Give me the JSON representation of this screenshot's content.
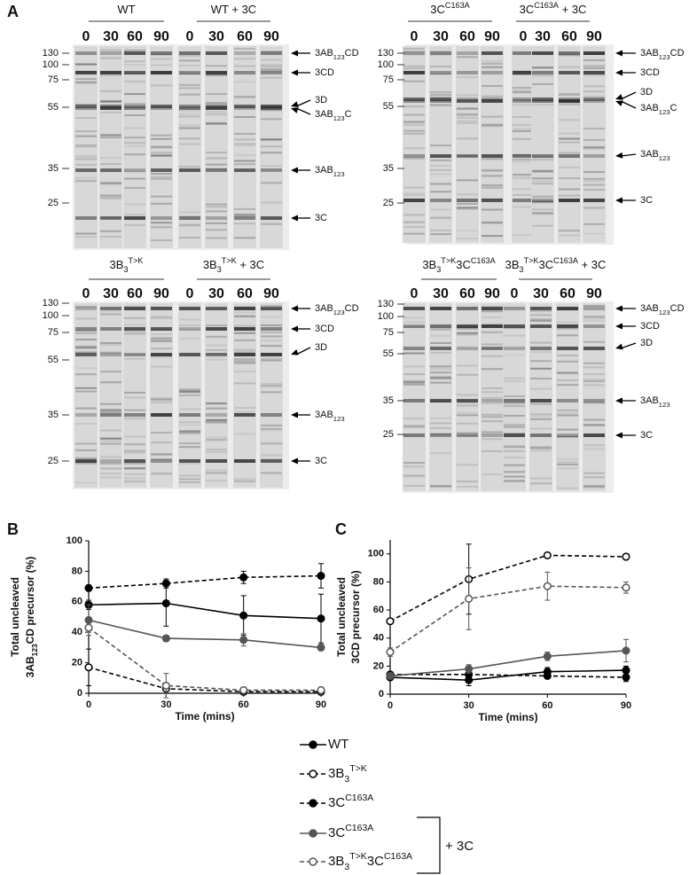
{
  "panels": [
    "A",
    "B",
    "C"
  ],
  "gels": [
    {
      "groups": [
        {
          "label": [
            "WT"
          ],
          "lanes": [
            0,
            30,
            60,
            90
          ]
        },
        {
          "label": [
            "WT + 3C"
          ],
          "lanes": [
            0,
            30,
            60,
            90
          ]
        }
      ],
      "markers": [
        130,
        100,
        75,
        55,
        35,
        25
      ],
      "bands": [
        [
          "3AB",
          {
            "sub": "123"
          },
          "CD"
        ],
        [
          "3CD"
        ],
        [
          "3D"
        ],
        [
          "3AB",
          {
            "sub": "123"
          },
          "C"
        ],
        [
          "3AB",
          {
            "sub": "123"
          }
        ],
        [
          "3C"
        ]
      ]
    },
    {
      "groups": [
        {
          "label": [
            "3C",
            {
              "sup": "C163A"
            }
          ],
          "lanes": [
            0,
            30,
            60,
            90
          ]
        },
        {
          "label": [
            "3C",
            {
              "sup": "C163A"
            },
            " + 3C"
          ],
          "lanes": [
            0,
            30,
            60,
            90
          ]
        }
      ],
      "markers": [
        130,
        100,
        75,
        55,
        35,
        25
      ],
      "bands": [
        [
          "3AB",
          {
            "sub": "123"
          },
          "CD"
        ],
        [
          "3CD"
        ],
        [
          "3D"
        ],
        [
          "3AB",
          {
            "sub": "123"
          },
          "C"
        ],
        [
          "3AB",
          {
            "sub": "123"
          }
        ],
        [
          "3C"
        ]
      ]
    },
    {
      "groups": [
        {
          "label": [
            "3B",
            {
              "sub": "3"
            },
            {
              "sup": "T>K"
            }
          ],
          "lanes": [
            0,
            30,
            60,
            90
          ]
        },
        {
          "label": [
            "3B",
            {
              "sub": "3"
            },
            {
              "sup": "T>K"
            },
            " + 3C"
          ],
          "lanes": [
            0,
            30,
            60,
            90
          ]
        }
      ],
      "markers": [
        130,
        100,
        75,
        55,
        35,
        25
      ],
      "bands": [
        [
          "3AB",
          {
            "sub": "123"
          },
          "CD"
        ],
        [
          "3CD"
        ],
        [
          "3D"
        ],
        [
          "3AB",
          {
            "sub": "123"
          }
        ],
        [
          "3C"
        ]
      ]
    },
    {
      "groups": [
        {
          "label": [
            "3B",
            {
              "sub": "3"
            },
            {
              "sup": "T>K"
            },
            "3C",
            {
              "sup": "C163A"
            }
          ],
          "lanes": [
            0,
            30,
            60,
            90
          ]
        },
        {
          "label": [
            "3B",
            {
              "sub": "3"
            },
            {
              "sup": "T>K"
            },
            "3C",
            {
              "sup": "C163A"
            },
            " + 3C"
          ],
          "lanes": [
            0,
            30,
            60,
            90
          ]
        }
      ],
      "markers": [
        130,
        100,
        75,
        55,
        35,
        25
      ],
      "bands": [
        [
          "3AB",
          {
            "sub": "123"
          },
          "CD"
        ],
        [
          "3CD"
        ],
        [
          "3D"
        ],
        [
          "3AB",
          {
            "sub": "123"
          }
        ],
        [
          "3C"
        ]
      ]
    }
  ],
  "chart_data": [
    {
      "type": "line",
      "x_label": "Time (mins)",
      "y_label": [
        [
          "Total uncleaved"
        ],
        [
          "3AB",
          {
            "sub": "123"
          },
          "CD precursor  (%)"
        ]
      ],
      "x": [
        0,
        30,
        60,
        90
      ],
      "xlim": [
        0,
        90
      ],
      "xticks": [
        0,
        30,
        60,
        90
      ],
      "ylim": [
        0,
        100
      ],
      "yticks": [
        0,
        20,
        40,
        60,
        80,
        100
      ],
      "legend": {
        "group_label": "+ 3C"
      },
      "series": [
        {
          "name": [
            "WT"
          ],
          "color": "#000000",
          "dashed": false,
          "marker": "filled",
          "values": [
            58,
            59,
            51,
            49
          ],
          "errors": [
            3,
            15,
            13,
            16
          ]
        },
        {
          "name": [
            "3B",
            {
              "sub": "3"
            },
            {
              "sup": "T>K"
            }
          ],
          "color": "#000000",
          "dashed": true,
          "marker": "open",
          "values": [
            17,
            3,
            1,
            1
          ],
          "errors": [
            12,
            3,
            2,
            2
          ]
        },
        {
          "name": [
            "3C",
            {
              "sup": "C163A"
            }
          ],
          "color": "#000000",
          "dashed": true,
          "marker": "filled",
          "values": [
            69,
            72,
            76,
            77
          ],
          "errors": [
            2,
            3,
            4,
            8
          ]
        },
        {
          "name": [
            "3C",
            {
              "sup": "C163A"
            }
          ],
          "color": "#555555",
          "dashed": false,
          "marker": "filled",
          "values": [
            48,
            36,
            35,
            30
          ],
          "errors": [
            10,
            2,
            4,
            2
          ]
        },
        {
          "name": [
            "3B",
            {
              "sub": "3"
            },
            {
              "sup": "T>K"
            },
            "3C",
            {
              "sup": "C163A"
            }
          ],
          "color": "#555555",
          "dashed": true,
          "marker": "open",
          "values": [
            43,
            5,
            2,
            2
          ],
          "errors": [
            3,
            8,
            2,
            2
          ]
        }
      ]
    },
    {
      "type": "line",
      "x_label": "Time (mins)",
      "y_label": [
        [
          "Total uncleaved"
        ],
        [
          "3CD precursor  (%)"
        ]
      ],
      "x": [
        0,
        30,
        60,
        90
      ],
      "xlim": [
        0,
        90
      ],
      "xticks": [
        0,
        30,
        60,
        90
      ],
      "ylim": [
        0,
        110
      ],
      "yticks": [
        0,
        20,
        40,
        60,
        80,
        100
      ],
      "series": [
        {
          "color": "#000000",
          "dashed": false,
          "marker": "filled",
          "values": [
            12,
            10,
            16,
            17
          ],
          "errors": [
            2,
            4,
            3,
            3
          ]
        },
        {
          "color": "#000000",
          "dashed": true,
          "marker": "open",
          "values": [
            52,
            82,
            99,
            98
          ],
          "errors": [
            0,
            25,
            1,
            2
          ]
        },
        {
          "color": "#000000",
          "dashed": true,
          "marker": "filled",
          "values": [
            14,
            14,
            13,
            12
          ],
          "errors": [
            2,
            2,
            2,
            3
          ]
        },
        {
          "color": "#555555",
          "dashed": false,
          "marker": "filled",
          "values": [
            13,
            18,
            27,
            31
          ],
          "errors": [
            2,
            3,
            3,
            8
          ]
        },
        {
          "color": "#555555",
          "dashed": true,
          "marker": "open",
          "values": [
            30,
            68,
            77,
            76
          ],
          "errors": [
            3,
            22,
            10,
            4
          ]
        }
      ]
    }
  ]
}
